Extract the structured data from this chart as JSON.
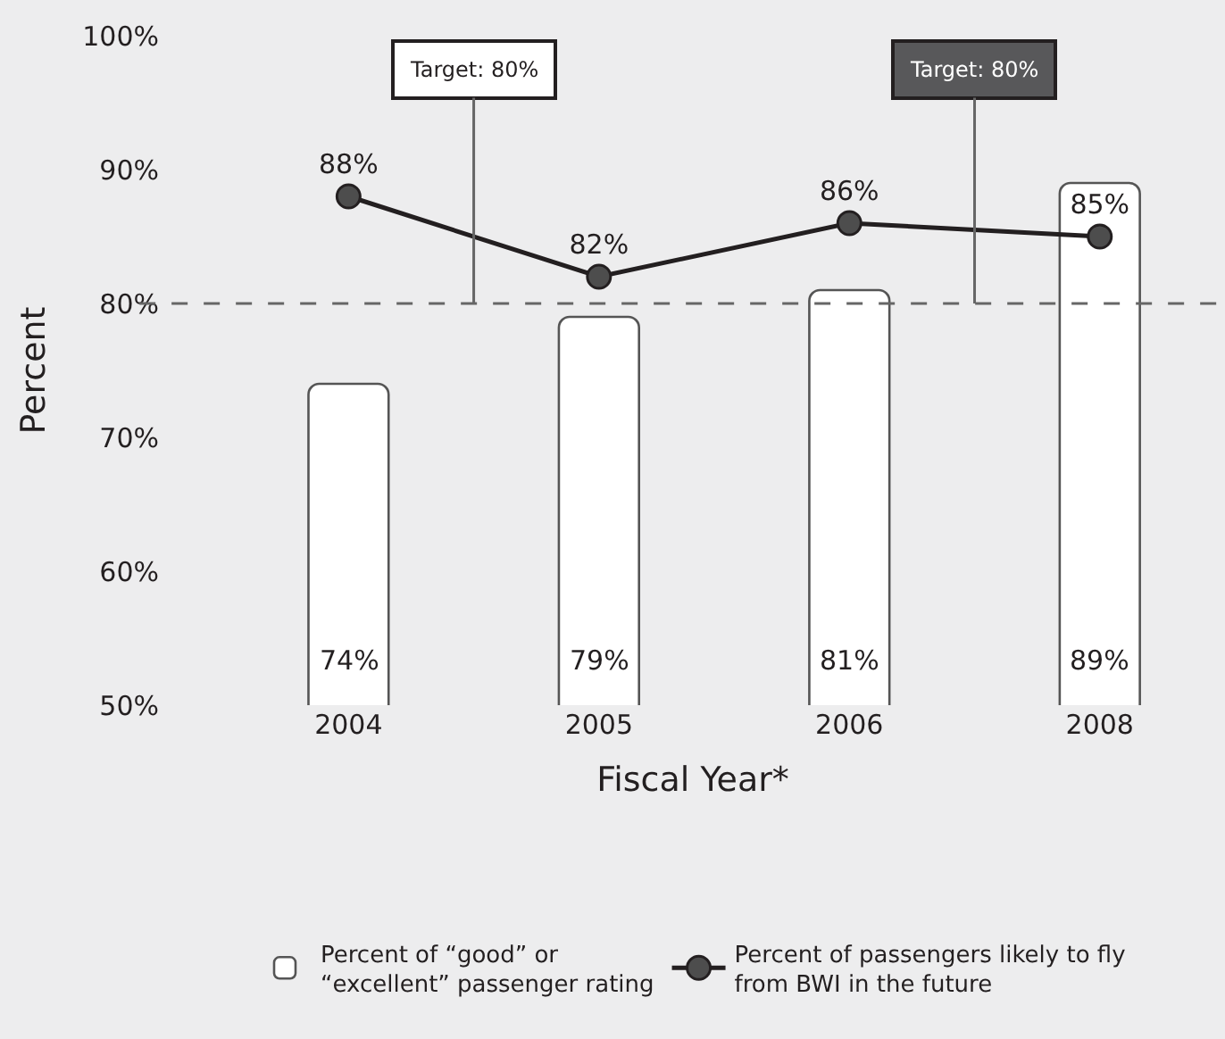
{
  "chart_data": {
    "type": "bar",
    "xlabel": "Fiscal Year*",
    "ylabel": "Percent",
    "categories": [
      "2004",
      "2005",
      "2006",
      "2008"
    ],
    "series": [
      {
        "name": "Percent of “good” or “excellent” passenger rating",
        "color": "#ffffff",
        "values": [
          74,
          79,
          81,
          89
        ],
        "value_labels": [
          "74%",
          "79%",
          "81%",
          "89%"
        ]
      },
      {
        "name": "Percent of passengers likely to fly from BWI in the future",
        "type": "line",
        "color": "#231f20",
        "marker": "circle",
        "values": [
          88,
          82,
          86,
          85
        ],
        "value_labels": [
          "88%",
          "82%",
          "86%",
          "85%"
        ]
      }
    ],
    "ylim": [
      50,
      100
    ],
    "yticks": [
      {
        "value": 50,
        "label": "50%"
      },
      {
        "value": 60,
        "label": "60%"
      },
      {
        "value": 70,
        "label": "70%"
      },
      {
        "value": 80,
        "label": "80%"
      },
      {
        "value": 90,
        "label": "90%"
      },
      {
        "value": 100,
        "label": "100%"
      }
    ],
    "ref_lines": [
      {
        "axis": "y",
        "value": 80,
        "color": "#666666",
        "line_style": "dashed"
      }
    ],
    "annotations": [
      {
        "text": "Target: 80%",
        "y": 80
      },
      {
        "text": "Target: 80%",
        "y": 80
      }
    ],
    "grid": false,
    "legend": "bottom"
  }
}
